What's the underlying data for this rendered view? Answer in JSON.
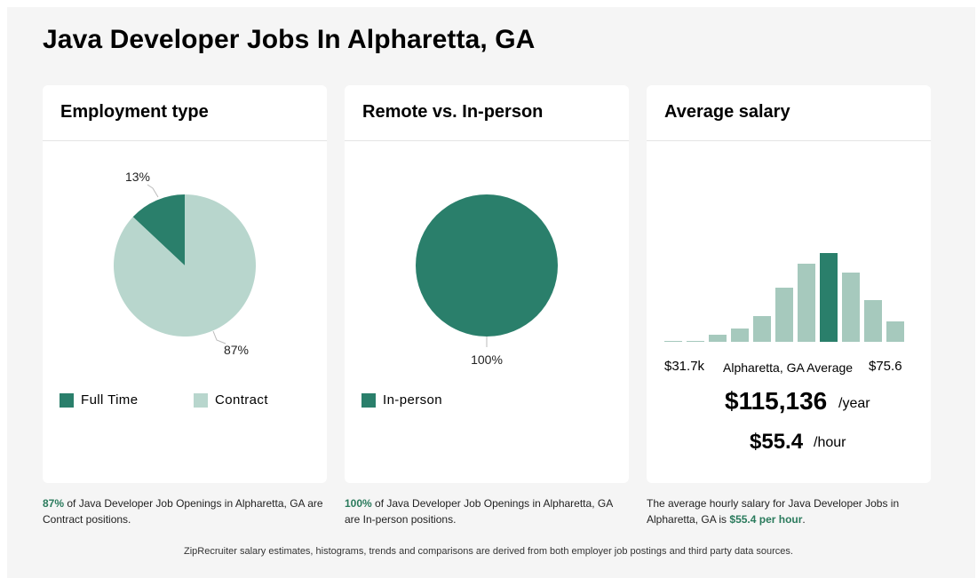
{
  "page": {
    "title": "Java Developer Jobs In Alpharetta, GA"
  },
  "colors": {
    "dark": "#2a7f6b",
    "light": "#b8d6cd",
    "mid": "#a6c9bd",
    "highlight": "#2a7a5c"
  },
  "cards": {
    "employment": {
      "title": "Employment type"
    },
    "remote": {
      "title": "Remote vs. In-person"
    },
    "salary": {
      "title": "Average salary"
    }
  },
  "chart_data": [
    {
      "type": "pie",
      "title": "Employment type",
      "slices": [
        {
          "label": "Full Time",
          "value": 13,
          "display": "13%",
          "color": "#2a7f6b"
        },
        {
          "label": "Contract",
          "value": 87,
          "display": "87%",
          "color": "#b8d6cd"
        }
      ]
    },
    {
      "type": "pie",
      "title": "Remote vs. In-person",
      "slices": [
        {
          "label": "In-person",
          "value": 100,
          "display": "100%",
          "color": "#2a7f6b"
        }
      ]
    },
    {
      "type": "bar",
      "title": "Average salary",
      "xmin_label": "$31.7k",
      "xmax_label": "$75.6",
      "highlight_label": "Alpharetta, GA Average",
      "highlight_index": 7,
      "values": [
        1,
        1,
        8,
        15,
        29,
        61,
        88,
        100,
        78,
        47,
        23
      ],
      "ylim": [
        0,
        100
      ]
    }
  ],
  "salary": {
    "yearly": "$115,136",
    "yearly_unit": "/year",
    "hourly": "$55.4",
    "hourly_unit": "/hour"
  },
  "captions": {
    "employment": {
      "highlight": "87%",
      "text": " of Java Developer Job Openings in Alpharetta, GA are Contract positions."
    },
    "remote": {
      "highlight": "100%",
      "text": " of Java Developer Job Openings in Alpharetta, GA are In-person positions."
    },
    "salary": {
      "text_before": "The average hourly salary for Java Developer Jobs in Alpharetta, GA is ",
      "highlight": "$55.4 per hour",
      "text_after": "."
    }
  },
  "footer": "ZipRecruiter salary estimates, histograms, trends and comparisons are derived from both employer job postings and third party data sources."
}
